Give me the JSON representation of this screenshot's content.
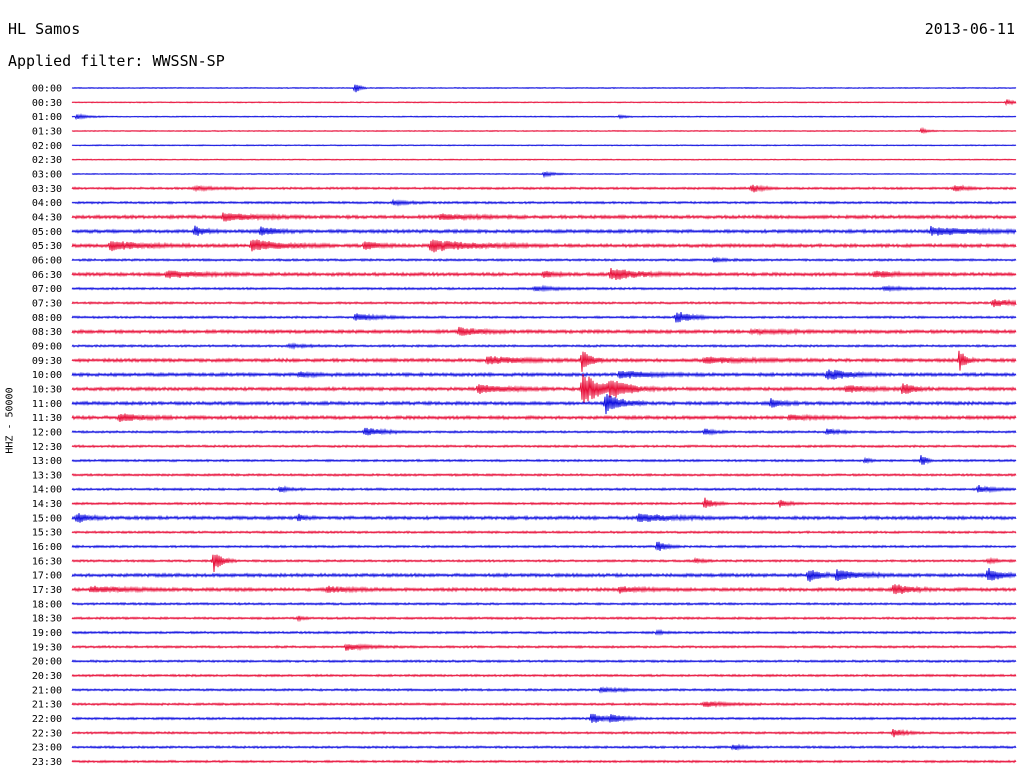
{
  "header": {
    "station": "HL Samos",
    "date": "2013-06-11",
    "filter_label": "Applied filter: WWSSN-SP"
  },
  "chart_data": {
    "type": "line",
    "title": "HL Samos",
    "subtitle": "Applied filter: WWSSN-SP",
    "ylabel": "HHZ - 50000",
    "xlabel": "",
    "colors": {
      "odd_row": "#e8103a",
      "even_row": "#1010e0"
    },
    "row_labels": [
      "00:00",
      "00:30",
      "01:00",
      "01:30",
      "02:00",
      "02:30",
      "03:00",
      "03:30",
      "04:00",
      "04:30",
      "05:00",
      "05:30",
      "06:00",
      "06:30",
      "07:00",
      "07:30",
      "08:00",
      "08:30",
      "09:00",
      "09:30",
      "10:00",
      "10:30",
      "11:00",
      "11:30",
      "12:00",
      "12:30",
      "13:00",
      "13:30",
      "14:00",
      "14:30",
      "15:00",
      "15:30",
      "16:00",
      "16:30",
      "17:00",
      "17:30",
      "18:00",
      "18:30",
      "19:00",
      "19:30",
      "20:00",
      "20:30",
      "21:00",
      "21:30",
      "22:00",
      "22:30",
      "23:00",
      "23:30"
    ],
    "noise_levels": [
      1,
      1,
      1,
      1,
      1,
      1,
      1,
      2,
      2,
      3,
      3,
      3,
      2,
      3,
      2,
      2,
      2,
      3,
      2,
      3,
      3,
      3,
      3,
      3,
      2,
      2,
      2,
      2,
      2,
      2,
      3,
      2,
      2,
      2,
      3,
      3,
      2,
      2,
      2,
      2,
      2,
      2,
      2,
      2,
      2,
      2,
      2,
      2
    ],
    "events": [
      {
        "row": 0,
        "x": 0.3,
        "amp": 12,
        "dur": 0.004
      },
      {
        "row": 1,
        "x": 0.99,
        "amp": 6,
        "dur": 0.006
      },
      {
        "row": 2,
        "x": 0.005,
        "amp": 5,
        "dur": 0.01
      },
      {
        "row": 2,
        "x": 0.58,
        "amp": 4,
        "dur": 0.005
      },
      {
        "row": 3,
        "x": 0.9,
        "amp": 5,
        "dur": 0.006
      },
      {
        "row": 6,
        "x": 0.5,
        "amp": 5,
        "dur": 0.01
      },
      {
        "row": 7,
        "x": 0.13,
        "amp": 4,
        "dur": 0.02
      },
      {
        "row": 7,
        "x": 0.72,
        "amp": 8,
        "dur": 0.01
      },
      {
        "row": 7,
        "x": 0.935,
        "amp": 6,
        "dur": 0.01
      },
      {
        "row": 8,
        "x": 0.34,
        "amp": 4,
        "dur": 0.015
      },
      {
        "row": 9,
        "x": 0.16,
        "amp": 8,
        "dur": 0.03
      },
      {
        "row": 9,
        "x": 0.39,
        "amp": 5,
        "dur": 0.03
      },
      {
        "row": 10,
        "x": 0.13,
        "amp": 10,
        "dur": 0.01
      },
      {
        "row": 10,
        "x": 0.2,
        "amp": 9,
        "dur": 0.015
      },
      {
        "row": 10,
        "x": 0.91,
        "amp": 8,
        "dur": 0.04
      },
      {
        "row": 11,
        "x": 0.04,
        "amp": 10,
        "dur": 0.03
      },
      {
        "row": 11,
        "x": 0.19,
        "amp": 12,
        "dur": 0.03
      },
      {
        "row": 11,
        "x": 0.31,
        "amp": 10,
        "dur": 0.012
      },
      {
        "row": 11,
        "x": 0.38,
        "amp": 12,
        "dur": 0.04
      },
      {
        "row": 12,
        "x": 0.68,
        "amp": 4,
        "dur": 0.01
      },
      {
        "row": 13,
        "x": 0.1,
        "amp": 7,
        "dur": 0.03
      },
      {
        "row": 13,
        "x": 0.5,
        "amp": 6,
        "dur": 0.01
      },
      {
        "row": 13,
        "x": 0.57,
        "amp": 12,
        "dur": 0.025
      },
      {
        "row": 13,
        "x": 0.85,
        "amp": 7,
        "dur": 0.02
      },
      {
        "row": 14,
        "x": 0.49,
        "amp": 4,
        "dur": 0.02
      },
      {
        "row": 14,
        "x": 0.86,
        "amp": 4,
        "dur": 0.02
      },
      {
        "row": 15,
        "x": 0.975,
        "amp": 8,
        "dur": 0.02
      },
      {
        "row": 16,
        "x": 0.3,
        "amp": 7,
        "dur": 0.02
      },
      {
        "row": 16,
        "x": 0.64,
        "amp": 12,
        "dur": 0.015
      },
      {
        "row": 17,
        "x": 0.41,
        "amp": 8,
        "dur": 0.02
      },
      {
        "row": 17,
        "x": 0.72,
        "amp": 3,
        "dur": 0.04
      },
      {
        "row": 18,
        "x": 0.23,
        "amp": 3,
        "dur": 0.02
      },
      {
        "row": 19,
        "x": 0.44,
        "amp": 8,
        "dur": 0.03
      },
      {
        "row": 19,
        "x": 0.54,
        "amp": 24,
        "dur": 0.008
      },
      {
        "row": 19,
        "x": 0.67,
        "amp": 6,
        "dur": 0.04
      },
      {
        "row": 19,
        "x": 0.94,
        "amp": 22,
        "dur": 0.006
      },
      {
        "row": 20,
        "x": 0.24,
        "amp": 5,
        "dur": 0.015
      },
      {
        "row": 20,
        "x": 0.58,
        "amp": 7,
        "dur": 0.03
      },
      {
        "row": 20,
        "x": 0.8,
        "amp": 12,
        "dur": 0.02
      },
      {
        "row": 21,
        "x": 0.43,
        "amp": 9,
        "dur": 0.025
      },
      {
        "row": 21,
        "x": 0.54,
        "amp": 34,
        "dur": 0.02
      },
      {
        "row": 21,
        "x": 0.57,
        "amp": 14,
        "dur": 0.02
      },
      {
        "row": 21,
        "x": 0.82,
        "amp": 7,
        "dur": 0.02
      },
      {
        "row": 21,
        "x": 0.88,
        "amp": 14,
        "dur": 0.01
      },
      {
        "row": 22,
        "x": 0.565,
        "amp": 20,
        "dur": 0.015
      },
      {
        "row": 22,
        "x": 0.74,
        "amp": 9,
        "dur": 0.01
      },
      {
        "row": 23,
        "x": 0.05,
        "amp": 8,
        "dur": 0.02
      },
      {
        "row": 23,
        "x": 0.76,
        "amp": 5,
        "dur": 0.02
      },
      {
        "row": 24,
        "x": 0.31,
        "amp": 10,
        "dur": 0.015
      },
      {
        "row": 24,
        "x": 0.67,
        "amp": 6,
        "dur": 0.01
      },
      {
        "row": 24,
        "x": 0.8,
        "amp": 7,
        "dur": 0.01
      },
      {
        "row": 26,
        "x": 0.84,
        "amp": 6,
        "dur": 0.004
      },
      {
        "row": 26,
        "x": 0.9,
        "amp": 16,
        "dur": 0.004
      },
      {
        "row": 28,
        "x": 0.22,
        "amp": 5,
        "dur": 0.01
      },
      {
        "row": 28,
        "x": 0.96,
        "amp": 8,
        "dur": 0.012
      },
      {
        "row": 29,
        "x": 0.67,
        "amp": 12,
        "dur": 0.008
      },
      {
        "row": 29,
        "x": 0.75,
        "amp": 7,
        "dur": 0.008
      },
      {
        "row": 30,
        "x": 0.005,
        "amp": 10,
        "dur": 0.01
      },
      {
        "row": 30,
        "x": 0.24,
        "amp": 6,
        "dur": 0.006
      },
      {
        "row": 30,
        "x": 0.6,
        "amp": 8,
        "dur": 0.03
      },
      {
        "row": 32,
        "x": 0.62,
        "amp": 11,
        "dur": 0.008
      },
      {
        "row": 33,
        "x": 0.15,
        "amp": 22,
        "dur": 0.008
      },
      {
        "row": 33,
        "x": 0.66,
        "amp": 5,
        "dur": 0.006
      },
      {
        "row": 33,
        "x": 0.97,
        "amp": 4,
        "dur": 0.01
      },
      {
        "row": 34,
        "x": 0.78,
        "amp": 14,
        "dur": 0.01
      },
      {
        "row": 34,
        "x": 0.81,
        "amp": 12,
        "dur": 0.02
      },
      {
        "row": 34,
        "x": 0.97,
        "amp": 14,
        "dur": 0.012
      },
      {
        "row": 35,
        "x": 0.02,
        "amp": 6,
        "dur": 0.03
      },
      {
        "row": 35,
        "x": 0.27,
        "amp": 6,
        "dur": 0.02
      },
      {
        "row": 35,
        "x": 0.58,
        "amp": 6,
        "dur": 0.02
      },
      {
        "row": 35,
        "x": 0.87,
        "amp": 12,
        "dur": 0.015
      },
      {
        "row": 37,
        "x": 0.24,
        "amp": 4,
        "dur": 0.004
      },
      {
        "row": 38,
        "x": 0.62,
        "amp": 4,
        "dur": 0.006
      },
      {
        "row": 39,
        "x": 0.29,
        "amp": 6,
        "dur": 0.02
      },
      {
        "row": 42,
        "x": 0.56,
        "amp": 4,
        "dur": 0.02
      },
      {
        "row": 43,
        "x": 0.67,
        "amp": 5,
        "dur": 0.02
      },
      {
        "row": 44,
        "x": 0.55,
        "amp": 10,
        "dur": 0.012
      },
      {
        "row": 44,
        "x": 0.57,
        "amp": 9,
        "dur": 0.012
      },
      {
        "row": 45,
        "x": 0.87,
        "amp": 8,
        "dur": 0.01
      },
      {
        "row": 46,
        "x": 0.7,
        "amp": 5,
        "dur": 0.01
      }
    ]
  }
}
